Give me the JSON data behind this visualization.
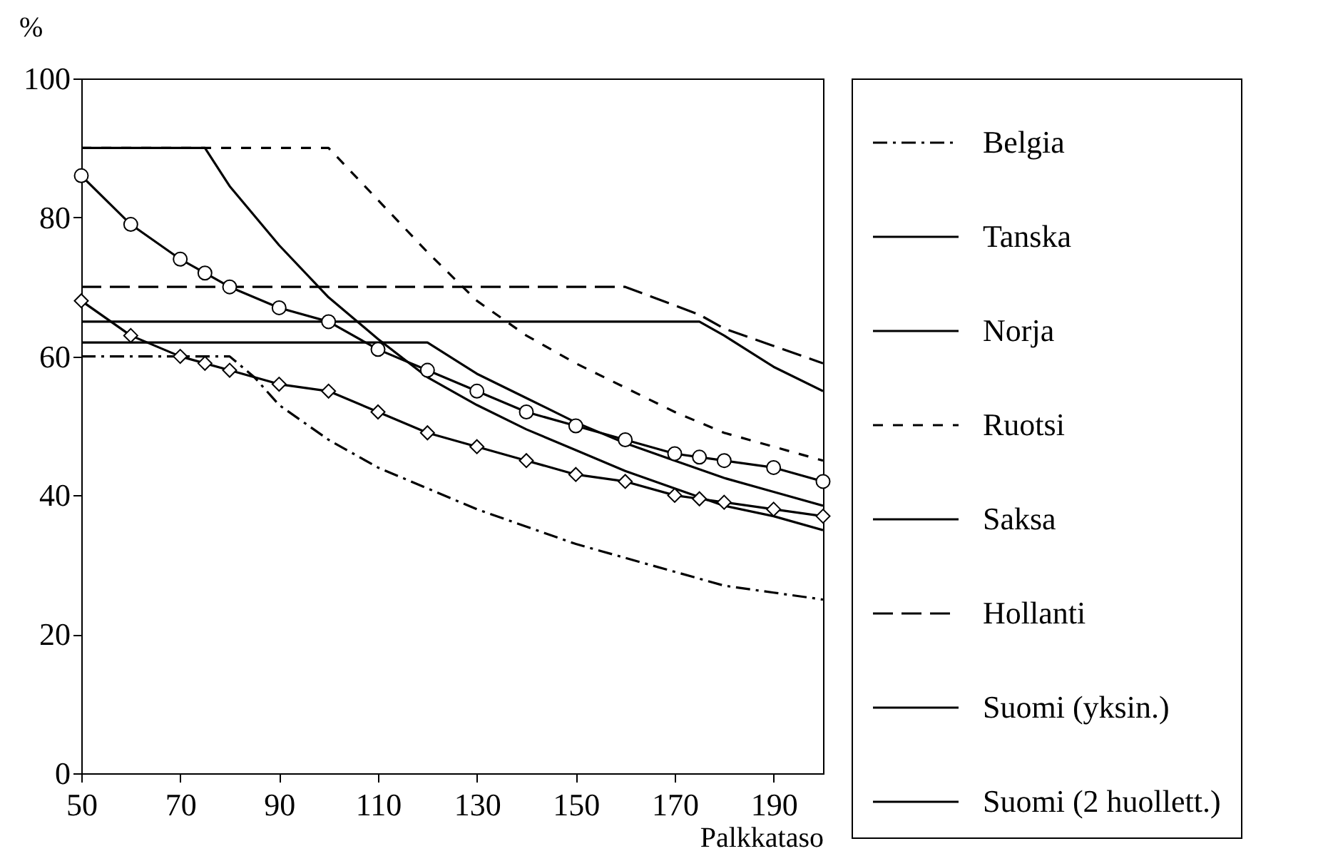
{
  "chart_data": {
    "type": "line",
    "xlabel": "Palkkataso",
    "ylabel": "%",
    "xlim": [
      50,
      200
    ],
    "ylim": [
      0,
      100
    ],
    "xticks": [
      50,
      70,
      90,
      110,
      130,
      150,
      170,
      190
    ],
    "yticks": [
      0,
      20,
      40,
      60,
      80,
      100
    ],
    "grid": false,
    "legend": "right",
    "series": [
      {
        "name": "Belgia",
        "color": "#000000",
        "line_style": "dashdot",
        "marker": "none",
        "x": [
          50,
          80,
          85,
          90,
          100,
          110,
          120,
          130,
          140,
          150,
          160,
          170,
          180,
          190,
          200
        ],
        "values": [
          60,
          60,
          57,
          53,
          48,
          44,
          41,
          38,
          35.5,
          33,
          31,
          29,
          27,
          26,
          25
        ]
      },
      {
        "name": "Tanska",
        "color": "#000000",
        "line_style": "solid",
        "marker": "none",
        "x": [
          50,
          75,
          80,
          90,
          100,
          110,
          120,
          130,
          140,
          150,
          160,
          170,
          180,
          190,
          200
        ],
        "values": [
          90,
          90,
          84.5,
          76,
          68.5,
          62.5,
          57,
          53,
          49.5,
          46.5,
          43.5,
          41,
          38.5,
          37,
          35
        ]
      },
      {
        "name": "Norja",
        "color": "#000000",
        "line_style": "solid",
        "marker": "none",
        "x": [
          50,
          120,
          130,
          140,
          150,
          160,
          170,
          180,
          190,
          200
        ],
        "values": [
          62,
          62,
          57.5,
          54,
          50.5,
          47.5,
          45,
          42.5,
          40.5,
          38.5
        ]
      },
      {
        "name": "Ruotsi",
        "color": "#000000",
        "line_style": "dotted",
        "marker": "none",
        "x": [
          50,
          100,
          110,
          120,
          130,
          140,
          150,
          160,
          170,
          180,
          190,
          200
        ],
        "values": [
          90,
          90,
          82.5,
          75,
          68,
          63,
          59,
          55.5,
          52,
          49,
          47,
          45
        ]
      },
      {
        "name": "Saksa",
        "color": "#000000",
        "line_style": "solid",
        "marker": "none",
        "x": [
          50,
          175,
          180,
          190,
          200
        ],
        "values": [
          65,
          65,
          63,
          58.5,
          55
        ]
      },
      {
        "name": "Hollanti",
        "color": "#000000",
        "line_style": "dashed",
        "marker": "none",
        "x": [
          50,
          160,
          175,
          180,
          190,
          200
        ],
        "values": [
          70,
          70,
          66,
          64,
          61.5,
          59
        ]
      },
      {
        "name": "Suomi (yksin.)",
        "color": "#000000",
        "line_style": "solid",
        "marker": "diamond",
        "x": [
          50,
          60,
          70,
          75,
          80,
          90,
          100,
          110,
          120,
          130,
          140,
          150,
          160,
          170,
          175,
          180,
          190,
          200
        ],
        "values": [
          68,
          63,
          60,
          59,
          58,
          56,
          55,
          52,
          49,
          47,
          45,
          43,
          42,
          40,
          39.5,
          39,
          38,
          37
        ]
      },
      {
        "name": "Suomi (2 huollett.)",
        "color": "#000000",
        "line_style": "solid",
        "marker": "circle",
        "x": [
          50,
          60,
          70,
          75,
          80,
          90,
          100,
          110,
          120,
          130,
          140,
          150,
          160,
          170,
          175,
          180,
          190,
          200
        ],
        "values": [
          86,
          79,
          74,
          72,
          70,
          67,
          65,
          61,
          58,
          55,
          52,
          50,
          48,
          46,
          45.5,
          45,
          44,
          42
        ]
      }
    ]
  }
}
